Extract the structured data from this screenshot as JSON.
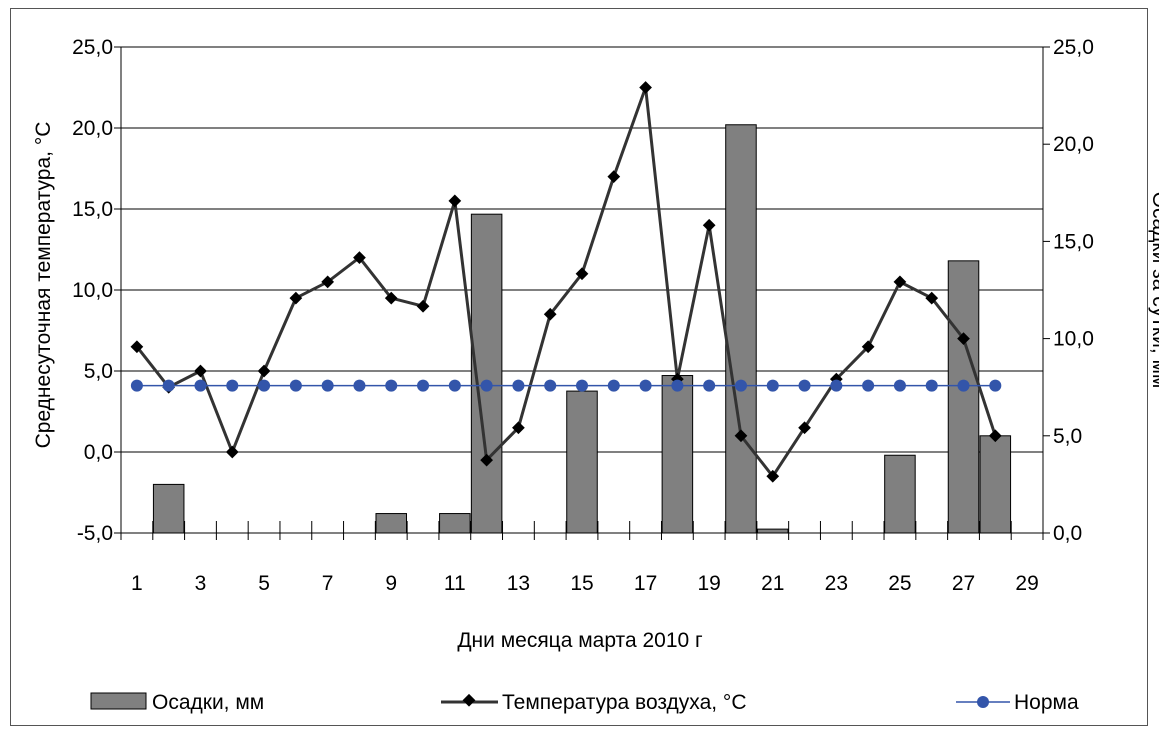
{
  "chart_data": {
    "type": "bar+line",
    "title": "",
    "xlabel": "Дни месяца марта 2010 г",
    "ylabel_left": "Среднесуточная температура, °C",
    "ylabel_right": "Осадки за сутки, мм",
    "x_ticks": [
      "1",
      "3",
      "5",
      "7",
      "9",
      "11",
      "13",
      "15",
      "17",
      "19",
      "21",
      "23",
      "25",
      "27",
      "29"
    ],
    "left_ticks": [
      "25,0",
      "20,0",
      "15,0",
      "10,0",
      "5,0",
      "0,0",
      "-5,0"
    ],
    "right_ticks": [
      "25,0",
      "20,0",
      "15,0",
      "10,0",
      "5,0",
      "0,0"
    ],
    "ylim_left": [
      -5,
      25
    ],
    "ylim_right": [
      0,
      25
    ],
    "grid": true,
    "legend_position": "bottom",
    "days": [
      1,
      2,
      3,
      4,
      5,
      6,
      7,
      8,
      9,
      10,
      11,
      12,
      13,
      14,
      15,
      16,
      17,
      18,
      19,
      20,
      21,
      22,
      23,
      24,
      25,
      26,
      27,
      28
    ],
    "series": [
      {
        "name": "Осадки, мм",
        "kind": "bar",
        "axis": "right",
        "color": "#808080",
        "values": [
          0,
          2.5,
          0,
          0,
          0,
          0,
          0,
          0,
          1.0,
          0,
          1.0,
          16.4,
          0,
          0,
          7.3,
          0,
          0,
          8.1,
          0,
          21.0,
          0.2,
          0,
          0,
          0,
          4.0,
          0,
          14.0,
          5.0
        ]
      },
      {
        "name": "Температура воздуха, °C",
        "kind": "line",
        "axis": "left",
        "color": "#333333",
        "values": [
          6.5,
          4.0,
          5.0,
          0.0,
          5.0,
          9.5,
          10.5,
          12.0,
          9.5,
          9.0,
          15.5,
          -0.5,
          1.5,
          8.5,
          11.0,
          17.0,
          22.5,
          4.5,
          14.0,
          1.0,
          -1.5,
          1.5,
          4.5,
          6.5,
          10.5,
          9.5,
          7.0,
          1.0
        ]
      },
      {
        "name": "Норма",
        "kind": "line",
        "axis": "left",
        "color": "#3355aa",
        "values": [
          4.1,
          4.1,
          4.1,
          4.1,
          4.1,
          4.1,
          4.1,
          4.1,
          4.1,
          4.1,
          4.1,
          4.1,
          4.1,
          4.1,
          4.1,
          4.1,
          4.1,
          4.1,
          4.1,
          4.1,
          4.1,
          4.1,
          4.1,
          4.1,
          4.1,
          4.1,
          4.1,
          4.1
        ]
      }
    ]
  }
}
